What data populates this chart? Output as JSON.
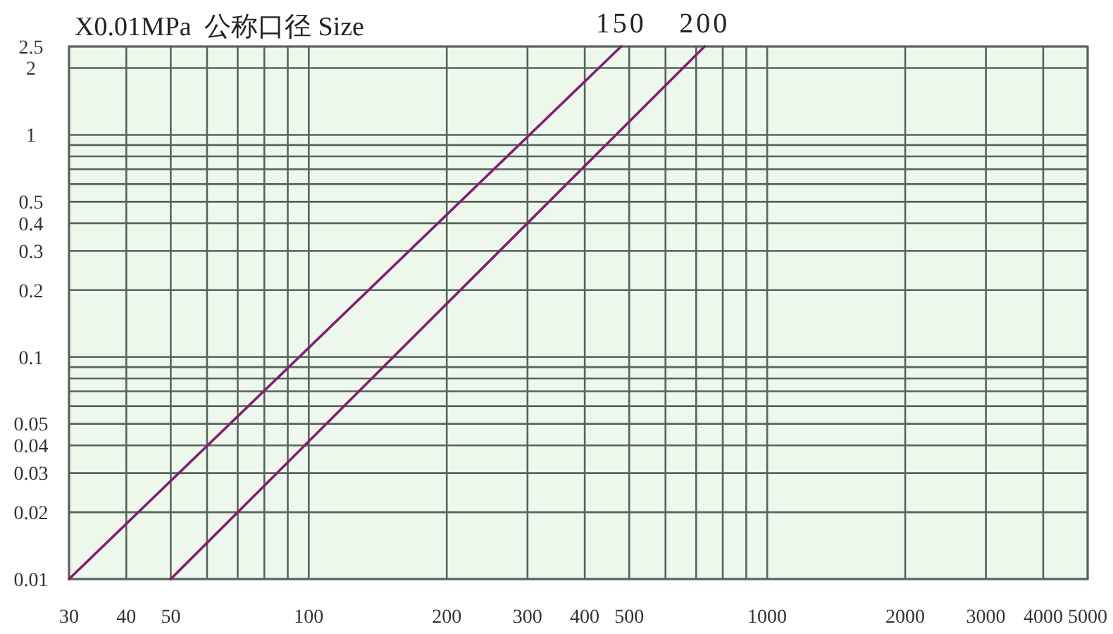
{
  "chart_data": {
    "type": "line",
    "ylabel": "X0.01MPa",
    "legend_title": "公称口径 Size",
    "series": [
      {
        "name": "150",
        "color": "#80206f",
        "x": [
          30,
          480
        ],
        "values": [
          0.01,
          2.5
        ]
      },
      {
        "name": "200",
        "color": "#80206f",
        "x": [
          50,
          730
        ],
        "values": [
          0.01,
          2.5
        ]
      }
    ],
    "log": "xy",
    "grid": true,
    "xlim": [
      30,
      5000
    ],
    "xticks": [
      30,
      40,
      50,
      {
        "value": 60,
        "label": null
      },
      {
        "value": 70,
        "label": null
      },
      {
        "value": 80,
        "label": null
      },
      {
        "value": 90,
        "label": null
      },
      100,
      200,
      300,
      400,
      500,
      {
        "value": 600,
        "label": null
      },
      {
        "value": 700,
        "label": null
      },
      {
        "value": 800,
        "label": null
      },
      {
        "value": 900,
        "label": null
      },
      1000,
      2000,
      3000,
      4000,
      5000
    ],
    "ylim": [
      0.01,
      2.5
    ],
    "yticks": [
      0.01,
      0.02,
      0.03,
      0.04,
      0.05,
      {
        "value": 0.06,
        "label": null
      },
      {
        "value": 0.07,
        "label": null
      },
      {
        "value": 0.08,
        "label": null
      },
      {
        "value": 0.09,
        "label": null
      },
      0.1,
      0.2,
      0.3,
      0.4,
      0.5,
      {
        "value": 0.6,
        "label": null
      },
      {
        "value": 0.7,
        "label": null
      },
      {
        "value": 0.8,
        "label": null
      },
      {
        "value": 0.9,
        "label": null
      },
      1,
      2,
      2.5
    ]
  }
}
